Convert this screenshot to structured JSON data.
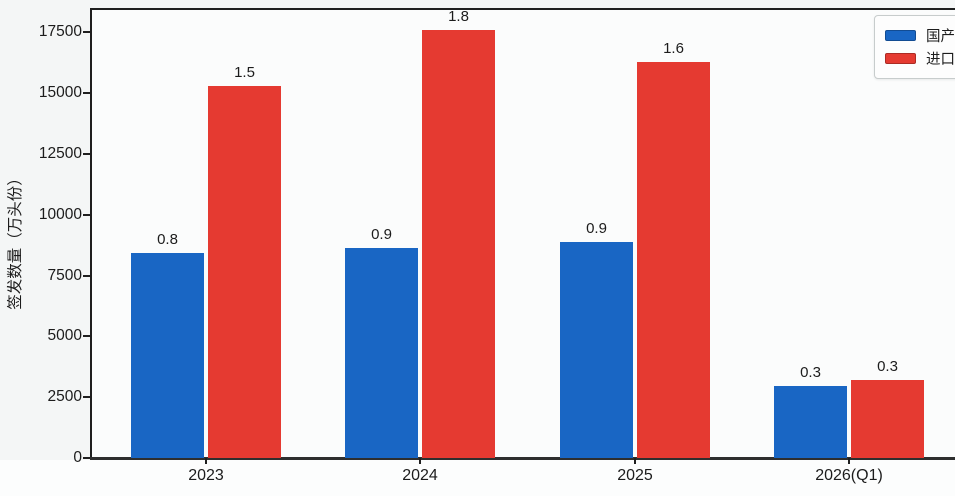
{
  "chart_data": {
    "type": "bar",
    "title": "",
    "xlabel": "",
    "ylabel": "签发数量（万头份）",
    "categories": [
      "2023",
      "2024",
      "2025",
      "2026(Q1)"
    ],
    "series": [
      {
        "name": "国产",
        "color": "#1966c4",
        "values": [
          8440,
          8650,
          8900,
          2970
        ],
        "bar_labels": [
          "0.8",
          "0.9",
          "0.9",
          "0.3"
        ]
      },
      {
        "name": "进口",
        "color": "#e53a31",
        "values": [
          15280,
          17580,
          16260,
          3210
        ],
        "bar_labels": [
          "1.5",
          "1.8",
          "1.6",
          "0.3"
        ]
      }
    ],
    "yticks": [
      0,
      2500,
      5000,
      7500,
      10000,
      12500,
      15000,
      17500
    ],
    "ylim": [
      0,
      18500
    ],
    "grid": false,
    "legend_position": "upper right"
  },
  "legend": {
    "items": [
      {
        "label": "国产",
        "color": "#1966c4"
      },
      {
        "label": "进口",
        "color": "#e53a31"
      }
    ]
  }
}
